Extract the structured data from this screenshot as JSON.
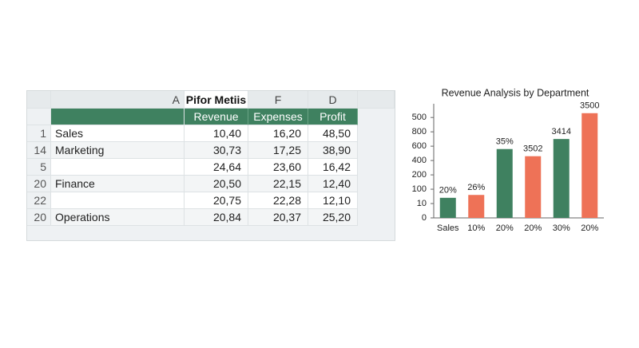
{
  "table": {
    "column_headers": [
      "A",
      "Pifor Metiis",
      "F",
      "D"
    ],
    "field_headers": [
      "Revenue",
      "Expenses",
      "Profit"
    ],
    "rows": [
      {
        "row": "1",
        "name": "Sales",
        "cells": [
          "10,40",
          "16,20",
          "48,50"
        ]
      },
      {
        "row": "14",
        "name": "Marketing",
        "cells": [
          "30,73",
          "17,25",
          "38,90"
        ]
      },
      {
        "row": "5",
        "name": null,
        "cells": [
          "24,64",
          "23,60",
          "16,42"
        ]
      },
      {
        "row": "20",
        "name": "Finance",
        "cells": [
          "20,50",
          "22,15",
          "12,40"
        ]
      },
      {
        "row": "22",
        "name": null,
        "cells": [
          "20,75",
          "22,28",
          "12,10"
        ]
      },
      {
        "row": "20",
        "name": "Operations",
        "cells": [
          "20,84",
          "20,37",
          "25,20"
        ]
      }
    ]
  },
  "chart_data": {
    "type": "bar",
    "title": "Revenue Analysis by Department",
    "categories": [
      "Sales",
      "10%",
      "20%",
      "20%",
      "30%",
      "20%"
    ],
    "values": [
      1.4,
      1.6,
      4.8,
      4.3,
      5.5,
      7.3
    ],
    "bar_labels": [
      "20%",
      "26%",
      "35%",
      "3502",
      "3414",
      "3500"
    ],
    "colors": [
      "#3f8160",
      "#ee7257",
      "#3f8160",
      "#ee7257",
      "#3f8160",
      "#ee7257"
    ],
    "ylim": [
      0,
      7.4
    ],
    "yticks": [
      {
        "value": 0,
        "label": "0"
      },
      {
        "value": 1,
        "label": "10"
      },
      {
        "value": 2,
        "label": "100"
      },
      {
        "value": 3,
        "label": "200"
      },
      {
        "value": 4,
        "label": "400"
      },
      {
        "value": 5,
        "label": "600"
      },
      {
        "value": 6,
        "label": "800"
      },
      {
        "value": 7,
        "label": "500"
      }
    ]
  }
}
